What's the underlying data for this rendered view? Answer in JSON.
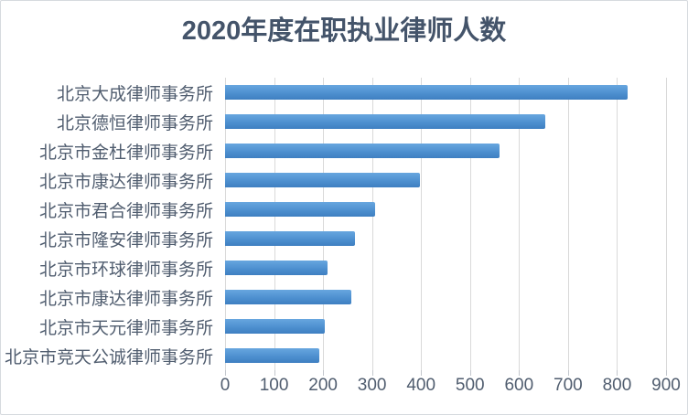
{
  "chart_data": {
    "type": "bar",
    "orientation": "horizontal",
    "title": "2020年度在职执业律师人数",
    "categories": [
      "北京大成律师事务所",
      "北京德恒律师事务所",
      "北京市金杜律师事务所",
      "北京市康达律师事务所",
      "北京市君合律师事务所",
      "北京市隆安律师事务所",
      "北京市环球律师事务所",
      "北京市康达律师事务所",
      "北京市天元律师事务所",
      "北京市竞天公诚律师事务所"
    ],
    "values": [
      822,
      654,
      561,
      397,
      307,
      266,
      209,
      258,
      204,
      192
    ],
    "xlim": [
      0,
      900
    ],
    "x_ticks": [
      0,
      100,
      200,
      300,
      400,
      500,
      600,
      700,
      800,
      900
    ],
    "xlabel": "",
    "ylabel": "",
    "grid": true,
    "legend": false
  },
  "colors": {
    "title_text": "#44546A",
    "axis_text": "#505d6f",
    "gridline": "#d9d9d9",
    "bar_top": "#67a6df",
    "bar_mid": "#4e90d0",
    "bar_bottom": "#3e7fc1",
    "frame_border": "#d6dade"
  }
}
